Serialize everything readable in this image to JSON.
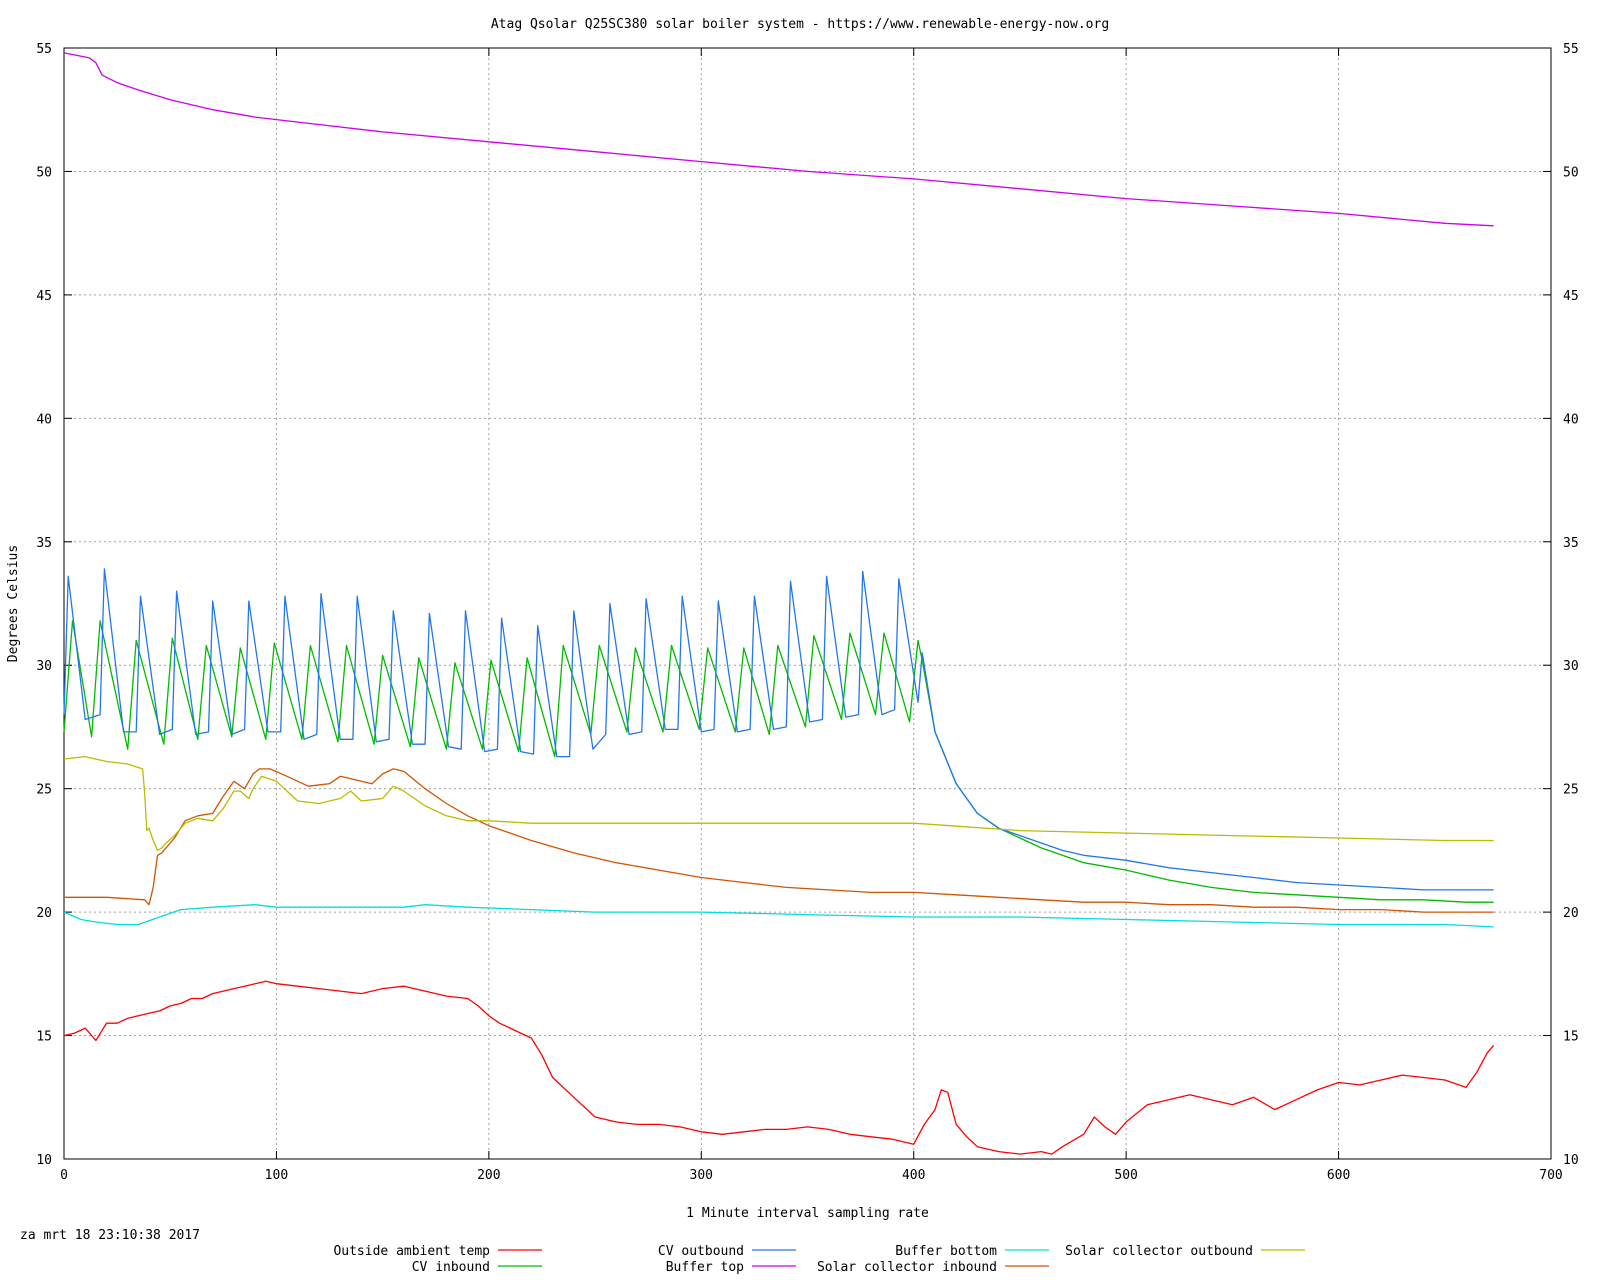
{
  "chart_data": {
    "type": "line",
    "title": "Atag Qsolar Q25SC380 solar boiler system - https://www.renewable-energy-now.org",
    "xlabel": "1 Minute interval sampling rate",
    "ylabel": "Degrees Celsius",
    "timestamp": "za mrt 18 23:10:38 2017",
    "xlim": [
      0,
      700
    ],
    "ylim": [
      10,
      55
    ],
    "xticks": [
      0,
      100,
      200,
      300,
      400,
      500,
      600,
      700
    ],
    "yticks": [
      10,
      15,
      20,
      25,
      30,
      35,
      40,
      45,
      50,
      55
    ],
    "grid": true,
    "legend_position": "bottom",
    "series": [
      {
        "name": "Outside ambient temp",
        "color": "#ff0000",
        "x": [
          0,
          5,
          10,
          15,
          20,
          25,
          30,
          35,
          40,
          45,
          50,
          55,
          60,
          65,
          70,
          75,
          80,
          85,
          90,
          95,
          100,
          110,
          120,
          130,
          140,
          150,
          160,
          170,
          180,
          190,
          195,
          200,
          205,
          210,
          215,
          220,
          225,
          230,
          240,
          250,
          260,
          270,
          280,
          290,
          300,
          310,
          320,
          330,
          340,
          350,
          360,
          370,
          380,
          390,
          400,
          405,
          410,
          413,
          416,
          420,
          425,
          430,
          440,
          450,
          460,
          465,
          470,
          480,
          485,
          490,
          495,
          500,
          510,
          520,
          530,
          540,
          550,
          560,
          570,
          580,
          590,
          600,
          610,
          620,
          630,
          640,
          650,
          660,
          665,
          670,
          673
        ],
        "y": [
          15.0,
          15.1,
          15.3,
          14.8,
          15.5,
          15.5,
          15.7,
          15.8,
          15.9,
          16.0,
          16.2,
          16.3,
          16.5,
          16.5,
          16.7,
          16.8,
          16.9,
          17.0,
          17.1,
          17.2,
          17.1,
          17.0,
          16.9,
          16.8,
          16.7,
          16.9,
          17.0,
          16.8,
          16.6,
          16.5,
          16.2,
          15.8,
          15.5,
          15.3,
          15.1,
          14.9,
          14.2,
          13.3,
          12.5,
          11.7,
          11.5,
          11.4,
          11.4,
          11.3,
          11.1,
          11.0,
          11.1,
          11.2,
          11.2,
          11.3,
          11.2,
          11.0,
          10.9,
          10.8,
          10.6,
          11.4,
          12.0,
          12.8,
          12.7,
          11.4,
          10.9,
          10.5,
          10.3,
          10.2,
          10.3,
          10.2,
          10.5,
          11.0,
          11.7,
          11.3,
          11.0,
          11.5,
          12.2,
          12.4,
          12.6,
          12.4,
          12.2,
          12.5,
          12.0,
          12.4,
          12.8,
          13.1,
          13.0,
          13.2,
          13.4,
          13.3,
          13.2,
          12.9,
          13.5,
          14.3,
          14.6
        ]
      },
      {
        "name": "CV inbound",
        "color": "#00bb00",
        "x": [
          0,
          4,
          13,
          17,
          30,
          34,
          47,
          51,
          63,
          67,
          79,
          83,
          95,
          99,
          112,
          116,
          129,
          133,
          146,
          150,
          163,
          167,
          180,
          184,
          197,
          201,
          214,
          218,
          231,
          235,
          248,
          252,
          265,
          269,
          282,
          286,
          299,
          303,
          316,
          320,
          332,
          336,
          349,
          353,
          366,
          370,
          382,
          386,
          398,
          402,
          404,
          410,
          420,
          430,
          440,
          450,
          460,
          470,
          480,
          500,
          520,
          540,
          560,
          580,
          600,
          620,
          640,
          660,
          673
        ],
        "y": [
          27.3,
          31.8,
          27.1,
          31.8,
          26.6,
          31.0,
          26.8,
          31.1,
          27.0,
          30.8,
          27.1,
          30.7,
          27.0,
          30.9,
          27.0,
          30.8,
          26.9,
          30.8,
          26.8,
          30.4,
          26.7,
          30.3,
          26.6,
          30.1,
          26.6,
          30.2,
          26.5,
          30.3,
          26.3,
          30.8,
          27.2,
          30.8,
          27.3,
          30.7,
          27.3,
          30.8,
          27.4,
          30.7,
          27.3,
          30.7,
          27.2,
          30.8,
          27.5,
          31.2,
          27.8,
          31.3,
          28.0,
          31.3,
          27.7,
          31.0,
          30.2,
          27.3,
          25.2,
          24.0,
          23.4,
          23.0,
          22.6,
          22.3,
          22.0,
          21.7,
          21.3,
          21.0,
          20.8,
          20.7,
          20.6,
          20.5,
          20.5,
          20.4,
          20.4
        ]
      },
      {
        "name": "CV outbound",
        "color": "#2277ee",
        "x": [
          0,
          2,
          10,
          17,
          19,
          28,
          34,
          36,
          45,
          51,
          53,
          62,
          68,
          70,
          79,
          85,
          87,
          96,
          102,
          104,
          113,
          119,
          121,
          130,
          136,
          138,
          147,
          153,
          155,
          164,
          170,
          172,
          181,
          187,
          189,
          198,
          204,
          206,
          215,
          221,
          223,
          232,
          238,
          240,
          249,
          255,
          257,
          266,
          272,
          274,
          283,
          289,
          291,
          300,
          306,
          308,
          317,
          323,
          325,
          334,
          340,
          342,
          351,
          357,
          359,
          368,
          374,
          376,
          385,
          391,
          393,
          402,
          404,
          410,
          420,
          430,
          440,
          450,
          460,
          470,
          480,
          500,
          520,
          540,
          560,
          580,
          600,
          620,
          640,
          660,
          673
        ],
        "y": [
          28.0,
          33.6,
          27.8,
          28.0,
          33.9,
          27.3,
          27.3,
          32.8,
          27.2,
          27.4,
          33.0,
          27.2,
          27.3,
          32.6,
          27.2,
          27.4,
          32.6,
          27.3,
          27.3,
          32.8,
          27.0,
          27.2,
          32.9,
          27.0,
          27.0,
          32.8,
          26.9,
          27.0,
          32.2,
          26.8,
          26.8,
          32.1,
          26.7,
          26.6,
          32.2,
          26.5,
          26.6,
          31.9,
          26.5,
          26.4,
          31.6,
          26.3,
          26.3,
          32.2,
          26.6,
          27.2,
          32.5,
          27.2,
          27.3,
          32.7,
          27.4,
          27.4,
          32.8,
          27.3,
          27.4,
          32.6,
          27.3,
          27.4,
          32.8,
          27.4,
          27.5,
          33.4,
          27.7,
          27.8,
          33.6,
          27.9,
          28.0,
          33.8,
          28.0,
          28.2,
          33.5,
          28.5,
          30.5,
          27.3,
          25.2,
          24.0,
          23.4,
          23.1,
          22.8,
          22.5,
          22.3,
          22.1,
          21.8,
          21.6,
          21.4,
          21.2,
          21.1,
          21.0,
          20.9,
          20.9,
          20.9
        ]
      },
      {
        "name": "Buffer top",
        "color": "#cc00ee",
        "x": [
          0,
          12,
          15,
          18,
          25,
          35,
          50,
          70,
          90,
          100,
          150,
          200,
          250,
          300,
          350,
          400,
          450,
          500,
          550,
          600,
          650,
          673
        ],
        "y": [
          54.8,
          54.6,
          54.4,
          53.9,
          53.6,
          53.3,
          52.9,
          52.5,
          52.2,
          52.1,
          51.6,
          51.2,
          50.8,
          50.4,
          50.0,
          49.7,
          49.3,
          48.9,
          48.6,
          48.3,
          47.9,
          47.8
        ]
      },
      {
        "name": "Buffer bottom",
        "color": "#00dddd",
        "x": [
          0,
          8,
          15,
          25,
          35,
          45,
          55,
          70,
          90,
          100,
          130,
          160,
          170,
          190,
          220,
          250,
          300,
          350,
          400,
          450,
          500,
          550,
          600,
          650,
          673
        ],
        "y": [
          20.0,
          19.7,
          19.6,
          19.5,
          19.5,
          19.8,
          20.1,
          20.2,
          20.3,
          20.2,
          20.2,
          20.2,
          20.3,
          20.2,
          20.1,
          20.0,
          20.0,
          19.9,
          19.8,
          19.8,
          19.7,
          19.6,
          19.5,
          19.5,
          19.4
        ]
      },
      {
        "name": "Solar collector inbound",
        "color": "#d35400",
        "x": [
          0,
          20,
          38,
          40,
          42,
          44,
          46,
          48,
          52,
          57,
          63,
          70,
          75,
          80,
          85,
          89,
          92,
          97,
          105,
          115,
          125,
          130,
          135,
          145,
          150,
          155,
          160,
          170,
          180,
          190,
          200,
          220,
          240,
          260,
          280,
          300,
          320,
          340,
          360,
          380,
          400,
          420,
          440,
          460,
          480,
          500,
          520,
          540,
          560,
          580,
          600,
          620,
          640,
          660,
          673
        ],
        "y": [
          20.6,
          20.6,
          20.5,
          20.3,
          21.0,
          22.3,
          22.4,
          22.6,
          23.0,
          23.7,
          23.9,
          24.0,
          24.7,
          25.3,
          25.0,
          25.6,
          25.8,
          25.8,
          25.5,
          25.1,
          25.2,
          25.5,
          25.4,
          25.2,
          25.6,
          25.8,
          25.7,
          25.0,
          24.4,
          23.9,
          23.5,
          22.9,
          22.4,
          22.0,
          21.7,
          21.4,
          21.2,
          21.0,
          20.9,
          20.8,
          20.8,
          20.7,
          20.6,
          20.5,
          20.4,
          20.4,
          20.3,
          20.3,
          20.2,
          20.2,
          20.1,
          20.1,
          20.0,
          20.0,
          20.0
        ]
      },
      {
        "name": "Solar collector outbound",
        "color": "#bbbb00",
        "x": [
          0,
          10,
          20,
          30,
          37,
          38,
          39,
          40,
          42,
          44,
          46,
          48,
          52,
          57,
          63,
          70,
          75,
          80,
          83,
          87,
          89,
          93,
          100,
          110,
          120,
          130,
          135,
          140,
          150,
          155,
          160,
          170,
          180,
          190,
          200,
          220,
          250,
          300,
          350,
          400,
          450,
          500,
          550,
          600,
          650,
          673
        ],
        "y": [
          26.2,
          26.3,
          26.1,
          26.0,
          25.8,
          24.8,
          23.3,
          23.4,
          22.9,
          22.5,
          22.6,
          22.8,
          23.1,
          23.6,
          23.8,
          23.7,
          24.2,
          24.9,
          24.9,
          24.6,
          25.0,
          25.5,
          25.3,
          24.5,
          24.4,
          24.6,
          24.9,
          24.5,
          24.6,
          25.1,
          24.9,
          24.3,
          23.9,
          23.7,
          23.7,
          23.6,
          23.6,
          23.6,
          23.6,
          23.6,
          23.3,
          23.2,
          23.1,
          23.0,
          22.9,
          22.9
        ]
      }
    ]
  }
}
